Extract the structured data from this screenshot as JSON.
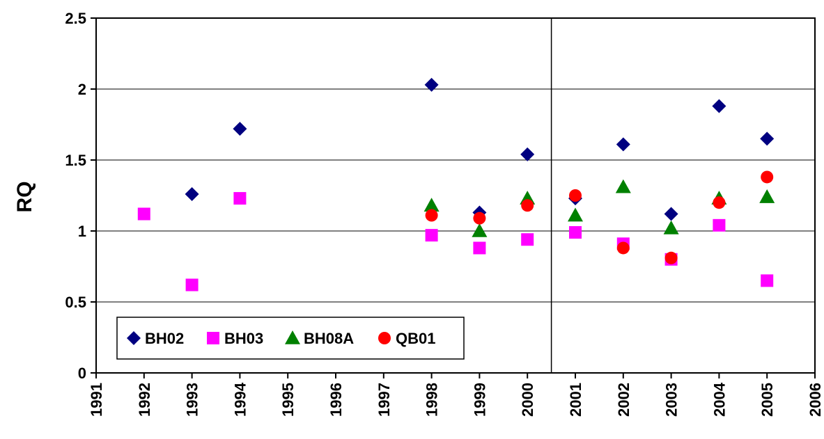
{
  "chart_data": {
    "type": "scatter",
    "title": "",
    "xlabel": "",
    "ylabel": "RQ",
    "xlim": [
      1991,
      2006
    ],
    "ylim": [
      0,
      2.5
    ],
    "x_ticks": [
      "1991",
      "1992",
      "1993",
      "1994",
      "1995",
      "1996",
      "1997",
      "1998",
      "1999",
      "2000",
      "2001",
      "2002",
      "2003",
      "2004",
      "2005",
      "2006"
    ],
    "y_ticks": [
      "0",
      "0.5",
      "1",
      "1.5",
      "2",
      "2.5"
    ],
    "grid": {
      "horizontal": true,
      "vertical": false
    },
    "reference_line": {
      "x": 2000.5
    },
    "legend_position": "bottom-left",
    "series": [
      {
        "name": "BH02",
        "marker": "diamond",
        "color": "#000080",
        "points": [
          {
            "x": 1993,
            "y": 1.26
          },
          {
            "x": 1994,
            "y": 1.72
          },
          {
            "x": 1998,
            "y": 2.03
          },
          {
            "x": 1999,
            "y": 1.13
          },
          {
            "x": 2000,
            "y": 1.54
          },
          {
            "x": 2001,
            "y": 1.23
          },
          {
            "x": 2002,
            "y": 1.61
          },
          {
            "x": 2003,
            "y": 1.12
          },
          {
            "x": 2004,
            "y": 1.88
          },
          {
            "x": 2005,
            "y": 1.65
          }
        ]
      },
      {
        "name": "BH03",
        "marker": "square",
        "color": "#FF00FF",
        "points": [
          {
            "x": 1992,
            "y": 1.12
          },
          {
            "x": 1993,
            "y": 0.62
          },
          {
            "x": 1994,
            "y": 1.23
          },
          {
            "x": 1998,
            "y": 0.97
          },
          {
            "x": 1999,
            "y": 0.88
          },
          {
            "x": 2000,
            "y": 0.94
          },
          {
            "x": 2001,
            "y": 0.99
          },
          {
            "x": 2002,
            "y": 0.91
          },
          {
            "x": 2003,
            "y": 0.8
          },
          {
            "x": 2004,
            "y": 1.04
          },
          {
            "x": 2005,
            "y": 0.65
          }
        ]
      },
      {
        "name": "BH08A",
        "marker": "triangle",
        "color": "#008000",
        "points": [
          {
            "x": 1998,
            "y": 1.18
          },
          {
            "x": 1999,
            "y": 1.0
          },
          {
            "x": 2000,
            "y": 1.23
          },
          {
            "x": 2001,
            "y": 1.11
          },
          {
            "x": 2002,
            "y": 1.31
          },
          {
            "x": 2003,
            "y": 1.02
          },
          {
            "x": 2004,
            "y": 1.23
          },
          {
            "x": 2005,
            "y": 1.24
          }
        ]
      },
      {
        "name": "QB01",
        "marker": "circle",
        "color": "#FF0000",
        "points": [
          {
            "x": 1998,
            "y": 1.11
          },
          {
            "x": 1999,
            "y": 1.09
          },
          {
            "x": 2000,
            "y": 1.18
          },
          {
            "x": 2001,
            "y": 1.25
          },
          {
            "x": 2002,
            "y": 0.88
          },
          {
            "x": 2003,
            "y": 0.81
          },
          {
            "x": 2004,
            "y": 1.2
          },
          {
            "x": 2005,
            "y": 1.38
          }
        ]
      }
    ]
  }
}
